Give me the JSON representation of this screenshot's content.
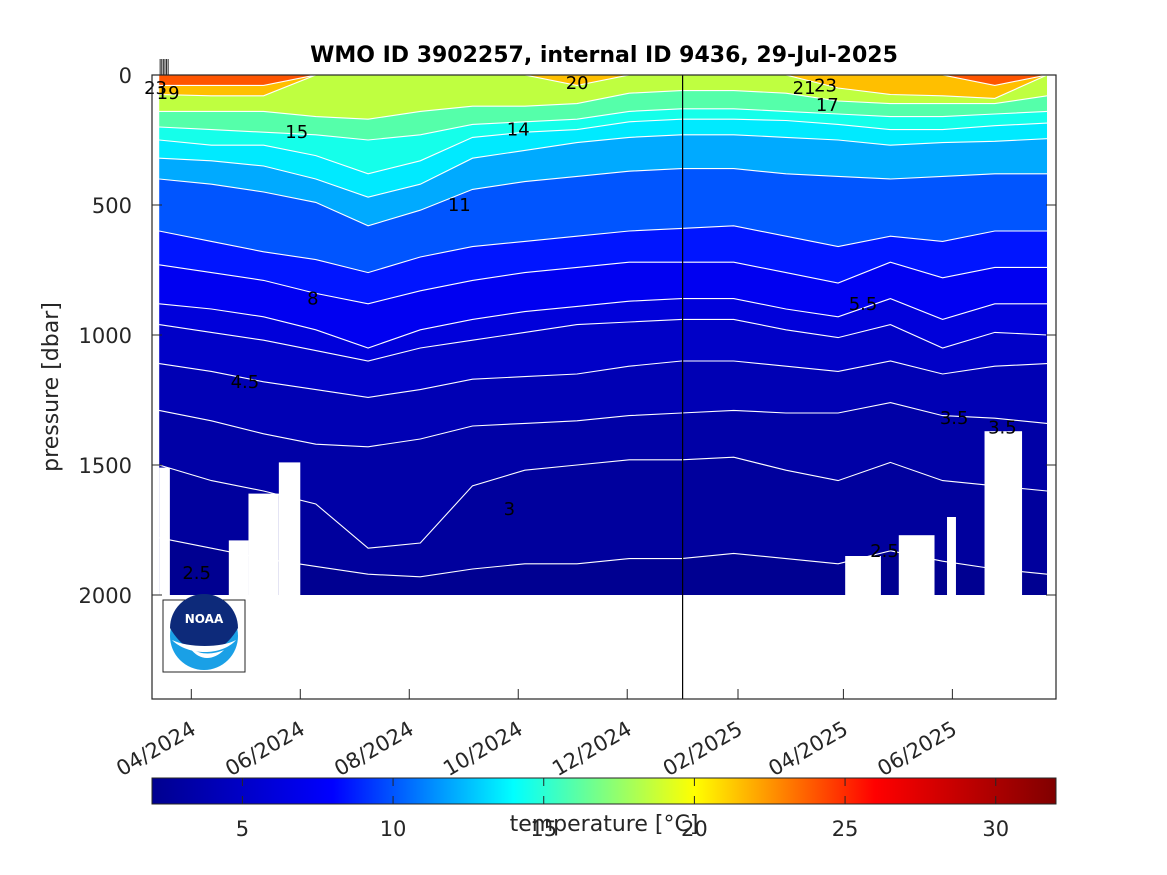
{
  "chart_data": {
    "type": "heatmap",
    "subtype": "filled-contour section",
    "title": "WMO ID 3902257, internal ID 9436, 29-Jul-2025",
    "ylabel": "pressure [dbar]",
    "y_reversed": true,
    "ylim": [
      0,
      2400
    ],
    "y_ticks": [
      0,
      500,
      1000,
      1500,
      2000
    ],
    "x_ticks": [
      "04/2024",
      "06/2024",
      "08/2024",
      "10/2024",
      "12/2024",
      "02/2025",
      "04/2025",
      "06/2025"
    ],
    "x_range": [
      "2024-03-10",
      "2025-07-29"
    ],
    "x_tick_dates": [
      "2024-04-01",
      "2024-06-01",
      "2024-08-01",
      "2024-10-01",
      "2024-12-01",
      "2025-02-01",
      "2025-04-01",
      "2025-06-01"
    ],
    "year_boundary": "2025-01-01",
    "profiles_start": "2024-03-14",
    "profiles_end": "2025-07-24",
    "max_pressure": 2000,
    "grid": false,
    "colorbar": {
      "label": "temperature [°C]",
      "range": [
        2,
        32
      ],
      "ticks": [
        5,
        10,
        15,
        20,
        25,
        30
      ],
      "colormap": "jet",
      "colors": [
        "#00008f",
        "#0000ff",
        "#00ffff",
        "#ffff00",
        "#ff0000",
        "#800000"
      ]
    },
    "contour_labels": [
      {
        "text": "23",
        "date": "2024-03-12",
        "pressure": 50
      },
      {
        "text": "19",
        "date": "2024-03-19",
        "pressure": 70
      },
      {
        "text": "15",
        "date": "2024-05-30",
        "pressure": 220
      },
      {
        "text": "20",
        "date": "2024-11-03",
        "pressure": 30
      },
      {
        "text": "14",
        "date": "2024-10-01",
        "pressure": 210
      },
      {
        "text": "11",
        "date": "2024-08-29",
        "pressure": 500
      },
      {
        "text": "21",
        "date": "2025-03-10",
        "pressure": 50
      },
      {
        "text": "23",
        "date": "2025-03-22",
        "pressure": 40
      },
      {
        "text": "17",
        "date": "2025-03-23",
        "pressure": 115
      },
      {
        "text": "8",
        "date": "2024-06-08",
        "pressure": 860
      },
      {
        "text": "5.5",
        "date": "2025-04-12",
        "pressure": 880
      },
      {
        "text": "4.5",
        "date": "2024-05-01",
        "pressure": 1180
      },
      {
        "text": "3.5",
        "date": "2025-06-02",
        "pressure": 1320
      },
      {
        "text": "3.5",
        "date": "2025-06-29",
        "pressure": 1355
      },
      {
        "text": "3",
        "date": "2024-09-26",
        "pressure": 1670
      },
      {
        "text": "2.5",
        "date": "2025-04-24",
        "pressure": 1830
      },
      {
        "text": "2.5",
        "date": "2024-04-04",
        "pressure": 1915
      }
    ],
    "data_gaps": [
      {
        "from": "2024-03-14",
        "to": "2024-03-20",
        "max_pressure": 1510
      },
      {
        "from": "2024-04-22",
        "to": "2024-05-03",
        "max_pressure": 1790
      },
      {
        "from": "2024-05-03",
        "to": "2024-05-20",
        "max_pressure": 1610
      },
      {
        "from": "2024-05-20",
        "to": "2024-06-01",
        "max_pressure": 1490
      },
      {
        "from": "2025-04-02",
        "to": "2025-04-22",
        "max_pressure": 1850
      },
      {
        "from": "2025-05-02",
        "to": "2025-05-22",
        "max_pressure": 1770
      },
      {
        "from": "2025-05-29",
        "to": "2025-06-03",
        "max_pressure": 1700
      },
      {
        "from": "2025-06-19",
        "to": "2025-07-10",
        "max_pressure": 1370
      }
    ],
    "isotherms": [
      {
        "value": 23,
        "depths": [
          40,
          40,
          40,
          0,
          0,
          0,
          0,
          0,
          0,
          0,
          0,
          0,
          0,
          0,
          0,
          0,
          40,
          0
        ]
      },
      {
        "value": 20,
        "depths": [
          75,
          80,
          80,
          0,
          0,
          0,
          0,
          0,
          40,
          0,
          0,
          0,
          0,
          50,
          75,
          80,
          90,
          0
        ]
      },
      {
        "value": 17,
        "depths": [
          140,
          140,
          140,
          160,
          170,
          140,
          120,
          120,
          110,
          70,
          60,
          60,
          70,
          100,
          110,
          110,
          110,
          80
        ]
      },
      {
        "value": 15,
        "depths": [
          200,
          210,
          220,
          230,
          250,
          230,
          190,
          180,
          170,
          140,
          130,
          130,
          140,
          150,
          160,
          160,
          150,
          140
        ]
      },
      {
        "value": 14,
        "depths": [
          250,
          270,
          270,
          310,
          380,
          330,
          240,
          220,
          210,
          180,
          170,
          170,
          175,
          190,
          210,
          210,
          195,
          185
        ]
      },
      {
        "value": 13,
        "depths": [
          320,
          330,
          350,
          400,
          470,
          420,
          320,
          290,
          260,
          240,
          230,
          230,
          240,
          250,
          270,
          260,
          255,
          245
        ]
      },
      {
        "value": 11,
        "depths": [
          400,
          420,
          450,
          490,
          580,
          520,
          440,
          410,
          390,
          370,
          360,
          360,
          380,
          390,
          400,
          390,
          380,
          380
        ]
      },
      {
        "value": 9,
        "depths": [
          600,
          640,
          680,
          710,
          760,
          700,
          660,
          640,
          620,
          600,
          590,
          580,
          620,
          660,
          620,
          640,
          600,
          600
        ]
      },
      {
        "value": 8,
        "depths": [
          730,
          760,
          790,
          840,
          880,
          830,
          790,
          760,
          740,
          720,
          720,
          720,
          760,
          800,
          720,
          780,
          740,
          740
        ]
      },
      {
        "value": 6.5,
        "depths": [
          880,
          900,
          930,
          980,
          1050,
          980,
          940,
          910,
          890,
          870,
          860,
          860,
          900,
          930,
          860,
          940,
          880,
          880
        ]
      },
      {
        "value": 5.5,
        "depths": [
          960,
          990,
          1020,
          1060,
          1100,
          1050,
          1020,
          990,
          960,
          950,
          940,
          940,
          980,
          1010,
          960,
          1050,
          990,
          1000
        ]
      },
      {
        "value": 4.5,
        "depths": [
          1110,
          1140,
          1180,
          1210,
          1240,
          1210,
          1170,
          1160,
          1150,
          1120,
          1100,
          1100,
          1120,
          1140,
          1100,
          1150,
          1120,
          1110
        ]
      },
      {
        "value": 3.5,
        "depths": [
          1290,
          1330,
          1380,
          1420,
          1430,
          1400,
          1350,
          1340,
          1330,
          1310,
          1300,
          1290,
          1300,
          1300,
          1260,
          1310,
          1320,
          1340
        ]
      },
      {
        "value": 3,
        "depths": [
          1500,
          1560,
          1600,
          1650,
          1820,
          1800,
          1580,
          1520,
          1500,
          1480,
          1480,
          1470,
          1520,
          1560,
          1490,
          1560,
          1580,
          1600
        ]
      },
      {
        "value": 2.5,
        "depths": [
          1780,
          1820,
          1860,
          1890,
          1920,
          1930,
          1900,
          1880,
          1880,
          1860,
          1860,
          1840,
          1860,
          1880,
          1830,
          1870,
          1900,
          1920
        ]
      }
    ]
  },
  "logo": {
    "text": "NOAA"
  }
}
